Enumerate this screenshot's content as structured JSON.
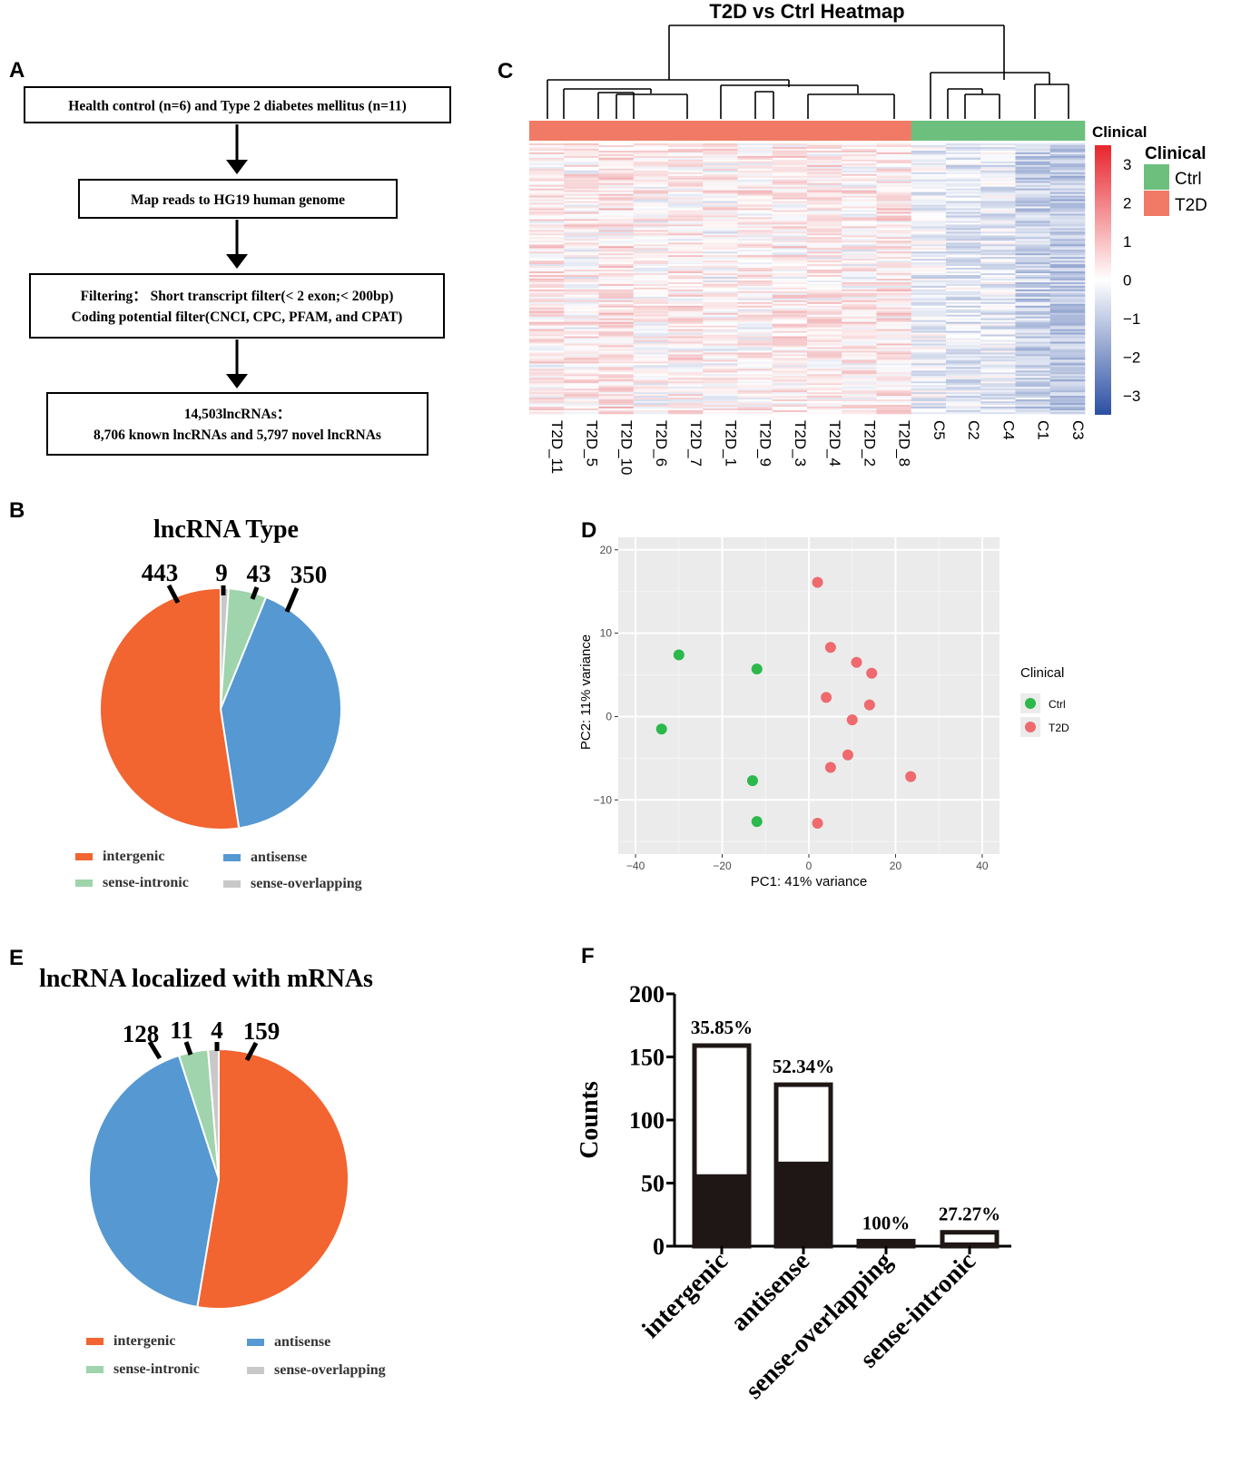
{
  "panel_letters": [
    "A",
    "B",
    "C",
    "D",
    "E",
    "F"
  ],
  "flowchart": {
    "steps": [
      [
        "Health control (n=6) and Type 2 diabetes mellitus (n=11)"
      ],
      [
        "Map reads to HG19 human genome"
      ],
      [
        "Filtering： Short transcript filter(< 2 exon;< 200bp)",
        "Coding potential filter(CNCI, CPC, PFAM, and CPAT)"
      ],
      [
        "14,503lncRNAs：",
        "8,706 known lncRNAs and 5,797 novel lncRNAs"
      ]
    ]
  },
  "colors": {
    "intergenic": "#f26430",
    "antisense": "#5598d2",
    "sense_intronic": "#9fd4ac",
    "sense_overlapping": "#c8c8c8",
    "ctrl": "#6dbf7e",
    "t2d": "#f07a65",
    "pca_ctrl": "#2db84c",
    "pca_t2d": "#ee6a6f",
    "bar": "#1e1716"
  },
  "chart_data": [
    {
      "type": "pie",
      "panel": "B",
      "title": "lncRNA Type",
      "labels": [
        "intergenic",
        "antisense",
        "sense-intronic",
        "sense-overlapping"
      ],
      "values": [
        443,
        350,
        43,
        9
      ],
      "legend": [
        "intergenic",
        "antisense",
        "sense-intronic",
        "sense-overlapping"
      ],
      "legend_position": "bottom"
    },
    {
      "type": "heatmap",
      "panel": "C",
      "title": "T2D vs Ctrl Heatmap",
      "columns": [
        "T2D_11",
        "T2D_5",
        "T2D_10",
        "T2D_6",
        "T2D_7",
        "T2D_1",
        "T2D_9",
        "T2D_3",
        "T2D_4",
        "T2D_2",
        "T2D_8",
        "C5",
        "C2",
        "C4",
        "C1",
        "C3"
      ],
      "column_groups": [
        "T2D",
        "T2D",
        "T2D",
        "T2D",
        "T2D",
        "T2D",
        "T2D",
        "T2D",
        "T2D",
        "T2D",
        "T2D",
        "Ctrl",
        "Ctrl",
        "Ctrl",
        "Ctrl",
        "Ctrl"
      ],
      "annotation_label": "Clinical",
      "legend_title": "Clinical",
      "legend_entries": [
        "Ctrl",
        "T2D"
      ],
      "color_scale": {
        "min": -3.5,
        "max": 3.5,
        "ticks": [
          3,
          2,
          1,
          0,
          -1,
          -2,
          -3
        ],
        "tick_labels": [
          "3",
          "2",
          "1",
          "0",
          "−1",
          "−2",
          "−3"
        ]
      },
      "column_mean_zscore": [
        0.3,
        0.2,
        0.4,
        0.1,
        0.3,
        0.1,
        0.2,
        0.3,
        0.3,
        0.2,
        0.35,
        -0.2,
        -0.35,
        -0.3,
        -0.8,
        -1.0
      ]
    },
    {
      "type": "scatter",
      "panel": "D",
      "xlabel": "PC1: 41% variance",
      "ylabel": "PC2: 11% variance",
      "xlim": [
        -44,
        44
      ],
      "ylim": [
        -16.5,
        21.5
      ],
      "xticks": [
        -40,
        -20,
        0,
        20,
        40
      ],
      "yticks": [
        20,
        10,
        0,
        -10
      ],
      "xtick_labels": [
        "−40",
        "−20",
        "0",
        "20",
        "40"
      ],
      "ytick_labels": [
        "20",
        "10",
        "0",
        "−10"
      ],
      "legend_title": "Clinical",
      "legend_position": "right",
      "series": [
        {
          "name": "Ctrl",
          "x": [
            -30,
            -12,
            -34,
            -13,
            -12
          ],
          "y": [
            7.4,
            5.7,
            -1.5,
            -7.7,
            -12.6
          ]
        },
        {
          "name": "T2D",
          "x": [
            2,
            5,
            11,
            14.5,
            4,
            14,
            10,
            9,
            5,
            23.5,
            2
          ],
          "y": [
            16.1,
            8.3,
            6.5,
            5.2,
            2.3,
            1.4,
            -0.4,
            -4.6,
            -6.1,
            -7.2,
            -12.8
          ]
        }
      ]
    },
    {
      "type": "pie",
      "panel": "E",
      "title": "lncRNA localized with mRNAs",
      "labels": [
        "intergenic",
        "antisense",
        "sense-intronic",
        "sense-overlapping"
      ],
      "values": [
        159,
        128,
        11,
        4
      ],
      "legend": [
        "intergenic",
        "antisense",
        "sense-intronic",
        "sense-overlapping"
      ],
      "legend_position": "bottom"
    },
    {
      "type": "bar",
      "panel": "F",
      "ylabel": "Counts",
      "ylim": [
        0,
        200
      ],
      "yticks": [
        0,
        50,
        100,
        150,
        200
      ],
      "categories": [
        "intergenic",
        "antisense",
        "sense-overlapping",
        "sense-intronic"
      ],
      "totals": [
        159,
        128,
        4,
        11
      ],
      "filled": [
        57,
        67,
        4,
        3
      ],
      "percent_labels": [
        "35.85%",
        "52.34%",
        "100%",
        "27.27%"
      ]
    }
  ]
}
